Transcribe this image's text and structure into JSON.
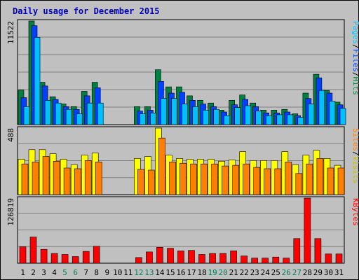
{
  "chart_data": {
    "type": "bar",
    "title": "Daily usage for December 2015",
    "days": [
      "1",
      "2",
      "3",
      "4",
      "5",
      "6",
      "7",
      "8",
      "9",
      "10",
      "11",
      "12",
      "13",
      "14",
      "15",
      "16",
      "17",
      "18",
      "19",
      "20",
      "21",
      "22",
      "23",
      "24",
      "25",
      "26",
      "27",
      "28",
      "29",
      "30",
      "31"
    ],
    "weekend_days": [
      5,
      6,
      12,
      13,
      19,
      20,
      26,
      27
    ],
    "colors": {
      "pages": "#00c0ff",
      "files": "#0040ff",
      "hits": "#008040",
      "visits": "#ffff00",
      "sites": "#ff8000",
      "kbytes": "#ff0000",
      "weekday": "#000000",
      "weekend": "#00805c"
    },
    "panels": [
      {
        "id": "hits-panel",
        "ymax_label": "11522",
        "ymax": 11522,
        "legend": [
          {
            "text": "Pages",
            "color": "#00c0ff"
          },
          {
            "text": "/",
            "color": "#000000"
          },
          {
            "text": "Files",
            "color": "#0040ff"
          },
          {
            "text": "/",
            "color": "#000000"
          },
          {
            "text": "Hits",
            "color": "#008040"
          }
        ],
        "series": [
          {
            "name": "Hits",
            "color": "#008040",
            "values": [
              3850,
              11522,
              4700,
              3100,
              2300,
              2000,
              3700,
              4700,
              0,
              0,
              0,
              2000,
              2000,
              6100,
              4200,
              4200,
              3200,
              2700,
              2400,
              1600,
              2700,
              3300,
              2400,
              1600,
              1600,
              1700,
              1200,
              3500,
              5600,
              3800,
              2500
            ]
          },
          {
            "name": "Files",
            "color": "#0040ff",
            "values": [
              3000,
              11000,
              4300,
              2800,
              2000,
              1700,
              3200,
              4100,
              0,
              0,
              0,
              1500,
              1600,
              4800,
              3500,
              3600,
              2700,
              2300,
              2000,
              1400,
              2200,
              2800,
              2000,
              1300,
              1300,
              1400,
              1000,
              2900,
              5200,
              3500,
              2200
            ]
          },
          {
            "name": "Pages",
            "color": "#00c0ff",
            "values": [
              2000,
              9700,
              2700,
              2400,
              1700,
              1200,
              2400,
              2400,
              0,
              0,
              0,
              1200,
              1300,
              2900,
              2900,
              2300,
              2000,
              1600,
              1700,
              1000,
              1900,
              2100,
              1500,
              1000,
              1100,
              1100,
              800,
              2300,
              3800,
              2600,
              1800
            ]
          }
        ]
      },
      {
        "id": "visits-panel",
        "ymax_label": "488",
        "ymax": 488,
        "legend": [
          {
            "text": "Sites",
            "color": "#ff8000"
          },
          {
            "text": "/",
            "color": "#000000"
          },
          {
            "text": "Visits",
            "color": "#c0c000"
          }
        ],
        "series": [
          {
            "name": "Visits",
            "color": "#ffff00",
            "values": [
              260,
              330,
              330,
              300,
              260,
              220,
              290,
              305,
              0,
              0,
              0,
              265,
              280,
              488,
              290,
              265,
              260,
              260,
              260,
              245,
              255,
              315,
              250,
              250,
              250,
              315,
              220,
              290,
              325,
              265,
              215
            ]
          },
          {
            "name": "Sites",
            "color": "#ff8000",
            "values": [
              225,
              240,
              280,
              245,
              195,
              190,
              250,
              240,
              0,
              0,
              0,
              185,
              180,
              415,
              240,
              230,
              225,
              225,
              225,
              210,
              215,
              225,
              200,
              190,
              190,
              240,
              155,
              225,
              265,
              195,
              195
            ]
          }
        ]
      },
      {
        "id": "kbytes-panel",
        "ymax_label": "126819",
        "ymax": 126819,
        "legend": [
          {
            "text": "KBytes",
            "color": "#ff0000"
          }
        ],
        "series": [
          {
            "name": "KBytes",
            "color": "#ff0000",
            "values": [
              32000,
              51000,
              27000,
              19000,
              17000,
              13000,
              23000,
              33000,
              0,
              0,
              0,
              11000,
              22000,
              31000,
              29000,
              24000,
              25000,
              17000,
              19000,
              19000,
              24000,
              14000,
              10000,
              10000,
              12000,
              10000,
              48000,
              126819,
              48000,
              18000,
              18000
            ]
          }
        ]
      }
    ]
  }
}
